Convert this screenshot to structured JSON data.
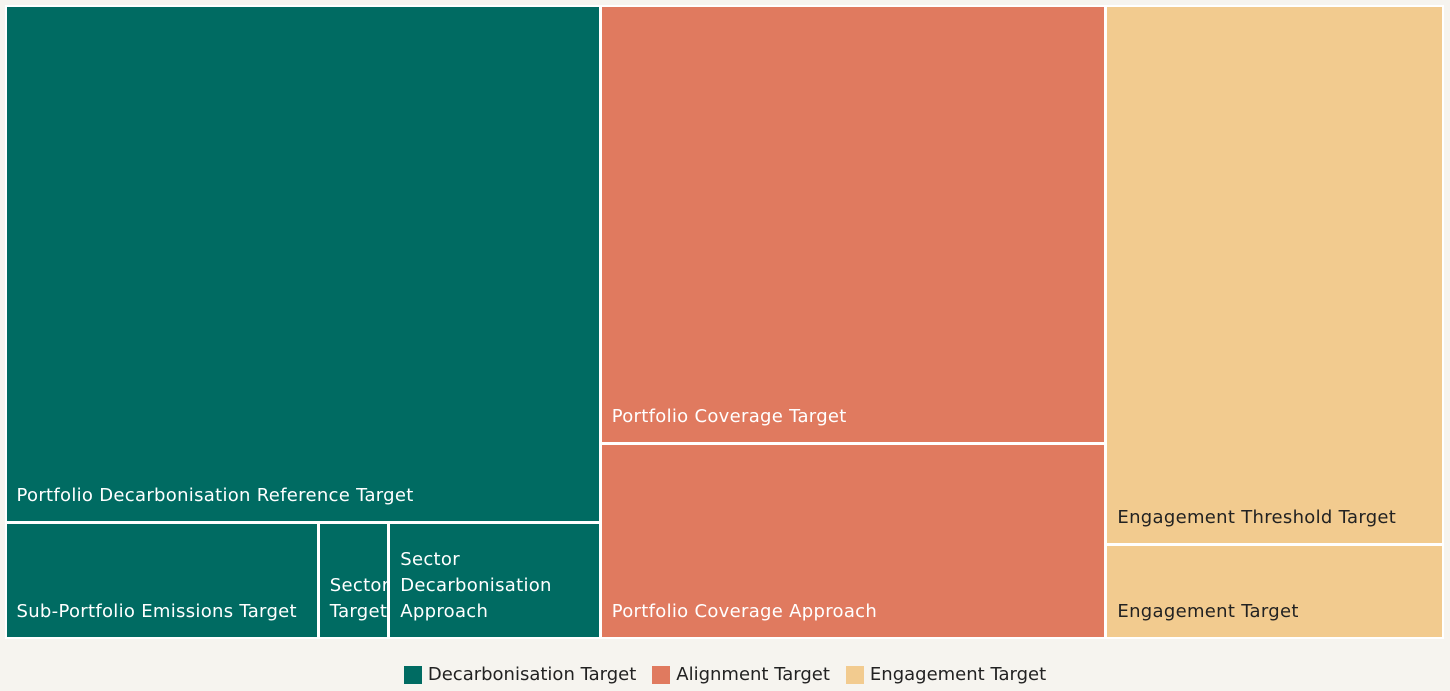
{
  "chart_data": {
    "type": "treemap",
    "series": [
      {
        "name": "Decarbonisation Target",
        "color": "#006b62",
        "labels": [
          "Portfolio Decarbonisation Reference Target",
          "Sub-Portfolio Emissions Target",
          "Sector Target",
          "Sector Decarbonisation Approach"
        ],
        "values": [
          33.6,
          4.0,
          0.9,
          2.7
        ]
      },
      {
        "name": "Alignment Target",
        "color": "#e07a5f",
        "labels": [
          "Portfolio Coverage Target",
          "Portfolio Coverage Approach"
        ],
        "values": [
          24.2,
          10.8
        ]
      },
      {
        "name": "Engagement Target",
        "color": "#f2cb8f",
        "labels": [
          "Engagement Threshold Target",
          "Engagement Target"
        ],
        "values": [
          19.9,
          3.5
        ]
      }
    ]
  }
}
